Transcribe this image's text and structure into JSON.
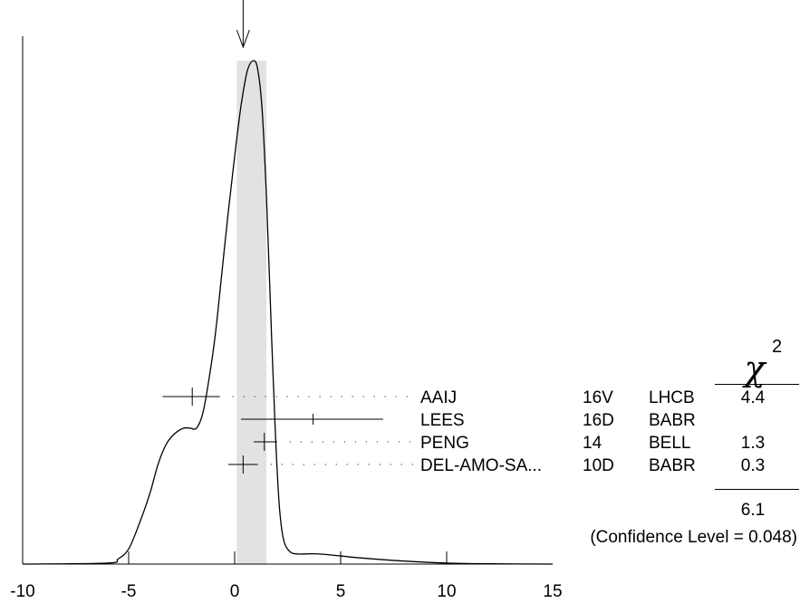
{
  "chart_data": {
    "type": "line",
    "title": "",
    "xlabel": "",
    "ylabel": "",
    "xlim": [
      -10,
      15
    ],
    "x_ticks": [
      -10,
      -5,
      0,
      5,
      10,
      15
    ],
    "x_tick_labels": [
      "-10",
      "-5",
      "0",
      "5",
      "10",
      "15"
    ],
    "average_band": [
      0.1,
      1.5
    ],
    "average_marker": 0.4,
    "ideogram": {
      "x": [
        -10,
        -6,
        -5.5,
        -5,
        -4.5,
        -4,
        -3.6,
        -3.2,
        -2.8,
        -2.4,
        -2.1,
        -1.8,
        -1.5,
        -1.2,
        -0.9,
        -0.6,
        -0.3,
        0.0,
        0.3,
        0.6,
        0.9,
        1.1,
        1.3,
        1.5,
        1.7,
        1.9,
        2.1,
        2.3,
        2.6,
        3.0,
        4,
        6,
        8,
        10,
        12,
        15
      ],
      "y": [
        0,
        0.002,
        0.01,
        0.03,
        0.08,
        0.14,
        0.2,
        0.24,
        0.26,
        0.27,
        0.27,
        0.27,
        0.3,
        0.37,
        0.46,
        0.58,
        0.7,
        0.81,
        0.91,
        0.98,
        1.0,
        0.98,
        0.9,
        0.73,
        0.5,
        0.28,
        0.12,
        0.05,
        0.025,
        0.02,
        0.02,
        0.012,
        0.006,
        0.002,
        0.0005,
        0
      ]
    },
    "measurements": [
      {
        "author": "AAIJ",
        "year": "16V",
        "experiment": "LHCB",
        "chi2": "4.4",
        "value": -2.0,
        "low": -3.4,
        "high": -0.7,
        "marker": "cross",
        "dotted": true
      },
      {
        "author": "LEES",
        "year": "16D",
        "experiment": "BABR",
        "chi2": "",
        "value": 3.7,
        "low": 0.3,
        "high": 7.0,
        "marker": "small",
        "dotted": false
      },
      {
        "author": "PENG",
        "year": "14",
        "experiment": "BELL",
        "chi2": "1.3",
        "value": 1.4,
        "low": 0.9,
        "high": 2.0,
        "marker": "cross",
        "dotted": true
      },
      {
        "author": "DEL-AMO-SA...",
        "year": "10D",
        "experiment": "BABR",
        "chi2": "0.3",
        "value": 0.4,
        "low": -0.3,
        "high": 1.1,
        "marker": "cross",
        "dotted": true
      }
    ],
    "chi2_header_symbol": "χ",
    "chi2_header_exponent": "2",
    "chi2_total": "6.1",
    "confidence_level_text": "(Confidence Level = 0.048)"
  }
}
